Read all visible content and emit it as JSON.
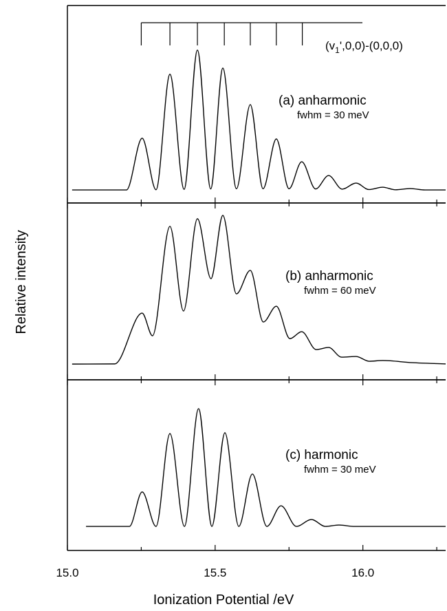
{
  "chart_data": [
    {
      "type": "line",
      "color": "#000000",
      "xlim": [
        15.0,
        16.28
      ],
      "ylim": [
        0,
        100
      ],
      "label": "(a) anharmonic",
      "fwhm_label": "fwhm = 30 meV",
      "annotation_parts": [
        "(v",
        "1",
        "',0,0)-(0,0,0)"
      ],
      "progression": [
        15.25,
        15.347,
        15.44,
        15.531,
        15.619,
        15.707,
        15.795
      ],
      "x": [
        15.016,
        15.2,
        15.253,
        15.3,
        15.347,
        15.395,
        15.44,
        15.485,
        15.526,
        15.572,
        15.619,
        15.662,
        15.707,
        15.75,
        15.793,
        15.84,
        15.884,
        15.93,
        15.977,
        16.02,
        16.067,
        16.11,
        16.16,
        16.21,
        16.28
      ],
      "values": [
        6.6,
        6.6,
        32.8,
        6.7,
        65.2,
        6.9,
        77.4,
        7.1,
        68.3,
        7.2,
        49.8,
        7.2,
        32.4,
        7.2,
        20.9,
        7.1,
        13.9,
        7.0,
        10.1,
        6.8,
        8.0,
        6.7,
        7.3,
        6.6,
        6.6
      ]
    },
    {
      "type": "line",
      "color": "#000000",
      "xlim": [
        15.0,
        16.28
      ],
      "ylim": [
        0,
        100
      ],
      "label": "(b) anharmonic",
      "fwhm_label": "fwhm = 60 meV",
      "ylabel": "Relative intensity",
      "x": [
        15.016,
        15.16,
        15.253,
        15.288,
        15.347,
        15.393,
        15.44,
        15.486,
        15.526,
        15.572,
        15.619,
        15.663,
        15.707,
        15.753,
        15.793,
        15.842,
        15.884,
        15.928,
        15.977,
        16.021,
        16.067,
        16.167,
        16.28
      ],
      "values": [
        8.9,
        9.0,
        37.7,
        24.9,
        86.8,
        38.9,
        91.1,
        57.2,
        93.0,
        48.6,
        61.9,
        32.7,
        41.6,
        23.3,
        27.2,
        17.1,
        18.3,
        12.8,
        13.2,
        10.5,
        10.9,
        9.7,
        9.0
      ]
    },
    {
      "type": "line",
      "color": "#000000",
      "xlim": [
        15.0,
        16.28
      ],
      "ylim": [
        0,
        100
      ],
      "label": "(c) harmonic",
      "fwhm_label": "fwhm = 30 meV",
      "xlabel": "Ionization Potential /eV",
      "xticks": [
        {
          "value": 15.0,
          "label": "15.0"
        },
        15.5,
        {
          "value": 16.0,
          "label": "16.0"
        }
      ],
      "xminorticks": [
        15.25,
        15.75,
        16.25
      ],
      "x": [
        15.063,
        15.21,
        15.253,
        15.3,
        15.347,
        15.396,
        15.444,
        15.489,
        15.533,
        15.58,
        15.626,
        15.675,
        15.723,
        15.775,
        15.826,
        15.873,
        15.919,
        15.97,
        16.28
      ],
      "values": [
        14.1,
        14.1,
        34.3,
        14.1,
        68.5,
        14.1,
        83.1,
        14.1,
        69.0,
        14.1,
        44.8,
        14.1,
        26.2,
        14.1,
        18.1,
        14.1,
        14.9,
        14.1,
        14.1
      ]
    }
  ]
}
